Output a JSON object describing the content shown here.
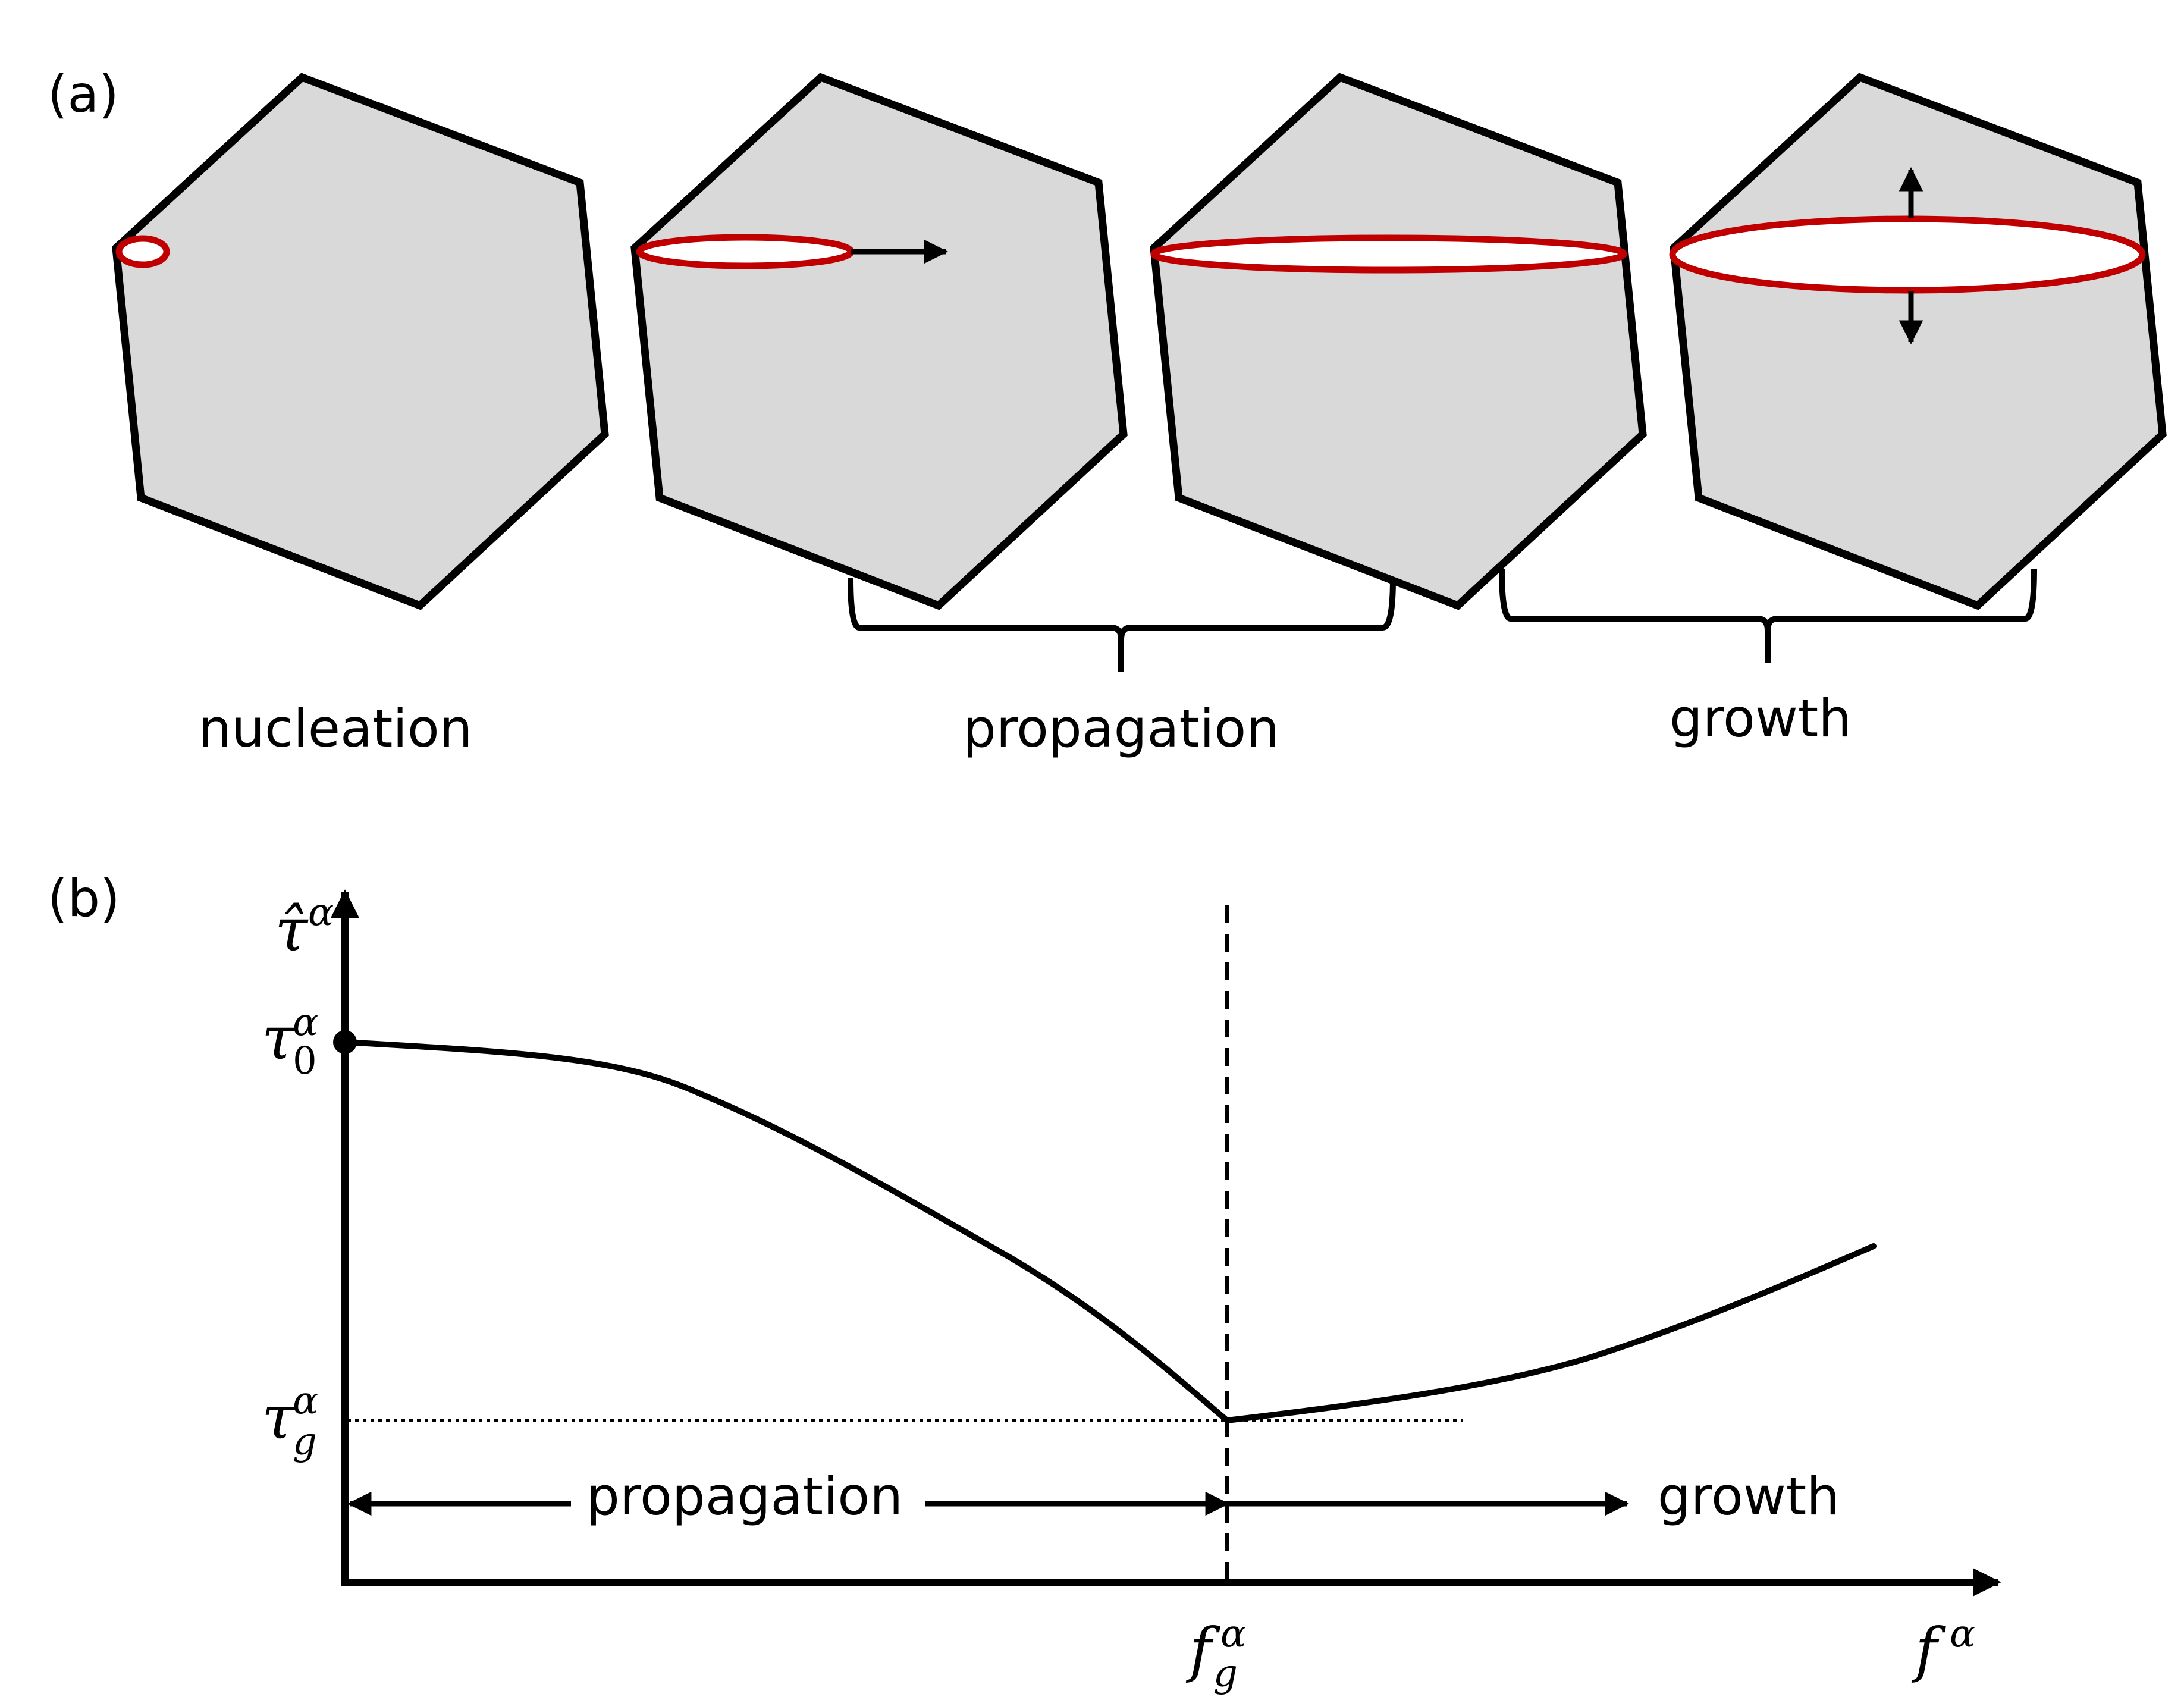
{
  "panel_a": {
    "label": "(a)",
    "stage_labels": {
      "nucleation": "nucleation",
      "propagation": "propagation",
      "growth": "growth"
    }
  },
  "panel_b": {
    "label": "(b)",
    "y_axis_label": {
      "base": "τ̂",
      "sup": "α"
    },
    "tau0_label": {
      "base": "τ",
      "sup": "α",
      "sub": "0"
    },
    "taug_label": {
      "base": "τ",
      "sup": "α",
      "sub": "g"
    },
    "fg_label": {
      "base": "f",
      "sup": "α",
      "sub": "g"
    },
    "x_axis_label": {
      "base": "f",
      "sup": "α"
    },
    "region_labels": {
      "propagation": "propagation",
      "growth": "growth"
    }
  },
  "colors": {
    "grain_fill": "#d9d9d9",
    "grain_outline": "#000000",
    "twin_loop": "#c00000",
    "line": "#000000",
    "background": "#ffffff"
  }
}
